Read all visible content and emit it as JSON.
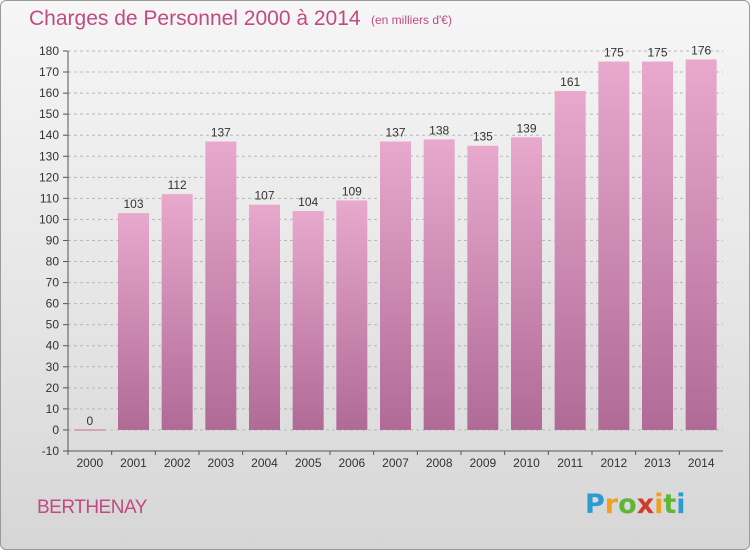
{
  "title": "Charges de Personnel 2000 à 2014",
  "subtitle": "(en milliers d'€)",
  "place": "BERTHENAY",
  "logo": {
    "letters": [
      "P",
      "r",
      "o",
      "x",
      "i",
      "t",
      "i"
    ],
    "colors": [
      "#2b9bd6",
      "#f0a020",
      "#5fb537",
      "#d23a2e",
      "#f0a020",
      "#5fb537",
      "#2b9bd6"
    ]
  },
  "colors": {
    "bar_top": "#e8a9cd",
    "bar_bottom": "#b06a96",
    "text": "#c14a82",
    "axis_text": "#333333",
    "grid": "#b8b8b8"
  },
  "chart_data": {
    "type": "bar",
    "categories": [
      "2000",
      "2001",
      "2002",
      "2003",
      "2004",
      "2005",
      "2006",
      "2007",
      "2008",
      "2009",
      "2010",
      "2011",
      "2012",
      "2013",
      "2014"
    ],
    "values": [
      0,
      103,
      112,
      137,
      107,
      104,
      109,
      137,
      138,
      135,
      139,
      161,
      175,
      175,
      176
    ],
    "ylim": [
      -10,
      180
    ],
    "yticks": [
      -10,
      0,
      10,
      20,
      30,
      40,
      50,
      60,
      70,
      80,
      90,
      100,
      110,
      120,
      130,
      140,
      150,
      160,
      170,
      180
    ],
    "data_labels": true,
    "grid": true
  }
}
